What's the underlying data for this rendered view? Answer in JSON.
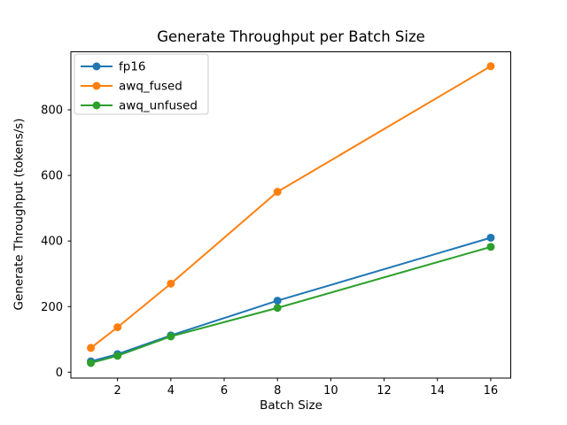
{
  "chart_data": {
    "type": "line",
    "title": "Generate Throughput per Batch Size",
    "xlabel": "Batch Size",
    "ylabel": "Generate Throughput (tokens/s)",
    "x": [
      1,
      2,
      4,
      8,
      16
    ],
    "series": [
      {
        "name": "fp16",
        "color": "#1f77b4",
        "values": [
          33,
          55,
          112,
          218,
          410
        ]
      },
      {
        "name": "awq_fused",
        "color": "#ff7f0e",
        "values": [
          74,
          137,
          270,
          550,
          933
        ]
      },
      {
        "name": "awq_unfused",
        "color": "#2ca02c",
        "values": [
          28,
          50,
          109,
          196,
          382
        ]
      }
    ],
    "xticks": [
      2,
      4,
      6,
      8,
      10,
      12,
      14,
      16
    ],
    "yticks": [
      0,
      200,
      400,
      600,
      800
    ],
    "xlim": [
      0.25,
      16.75
    ],
    "ylim": [
      -18,
      977
    ],
    "grid": false,
    "legend_position": "upper left",
    "marker": "circle",
    "background": "#ffffff",
    "text_color": "#000000",
    "spine_color": "#000000",
    "legend_border_color": "#cccccc"
  }
}
